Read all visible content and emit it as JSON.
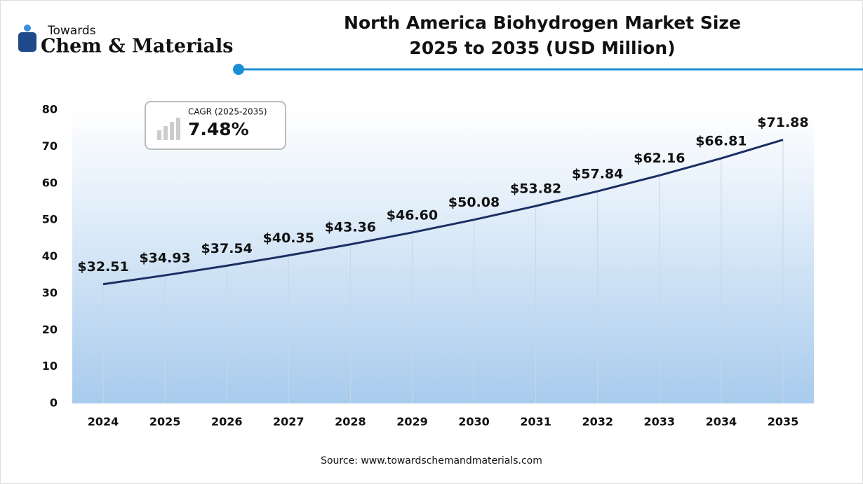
{
  "logo": {
    "top": "Towards",
    "bottom": "Chem & Materials"
  },
  "chart_data": {
    "type": "line",
    "title": [
      "North America Biohydrogen Market Size",
      "2025 to 2035 (USD Million)"
    ],
    "annotation": {
      "label": "CAGR (2025-2035)",
      "value": "7.48%"
    },
    "source": "Source: www.towardschemandmaterials.com",
    "categories": [
      "2024",
      "2025",
      "2026",
      "2027",
      "2028",
      "2029",
      "2030",
      "2031",
      "2032",
      "2033",
      "2034",
      "2035"
    ],
    "values": [
      32.51,
      34.93,
      37.54,
      40.35,
      43.36,
      46.6,
      50.08,
      53.82,
      57.84,
      62.16,
      66.81,
      71.88
    ],
    "value_labels": [
      "$32.51",
      "$34.93",
      "$37.54",
      "$40.35",
      "$43.36",
      "$46.60",
      "$50.08",
      "$53.82",
      "$57.84",
      "$62.16",
      "$66.81",
      "$71.88"
    ],
    "color": "#1b2f63",
    "ylim": [
      0,
      80
    ],
    "yticks": [
      0,
      10,
      20,
      30,
      40,
      50,
      60,
      70,
      80
    ]
  }
}
